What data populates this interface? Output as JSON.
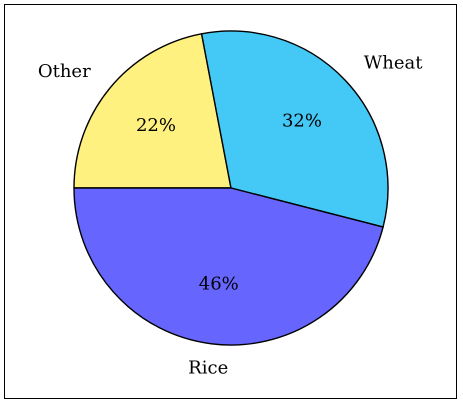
{
  "chart_data": {
    "type": "pie",
    "title": "",
    "start_angle_deg": 180,
    "direction": "clockwise",
    "slices": [
      {
        "label": "Other",
        "value": 22,
        "value_label": "22%",
        "color": "#fff180"
      },
      {
        "label": "Wheat",
        "value": 32,
        "value_label": "32%",
        "color": "#44c8f5"
      },
      {
        "label": "Rice",
        "value": 46,
        "value_label": "46%",
        "color": "#6666ff"
      }
    ],
    "legend": "none",
    "labels_position": "outside"
  }
}
